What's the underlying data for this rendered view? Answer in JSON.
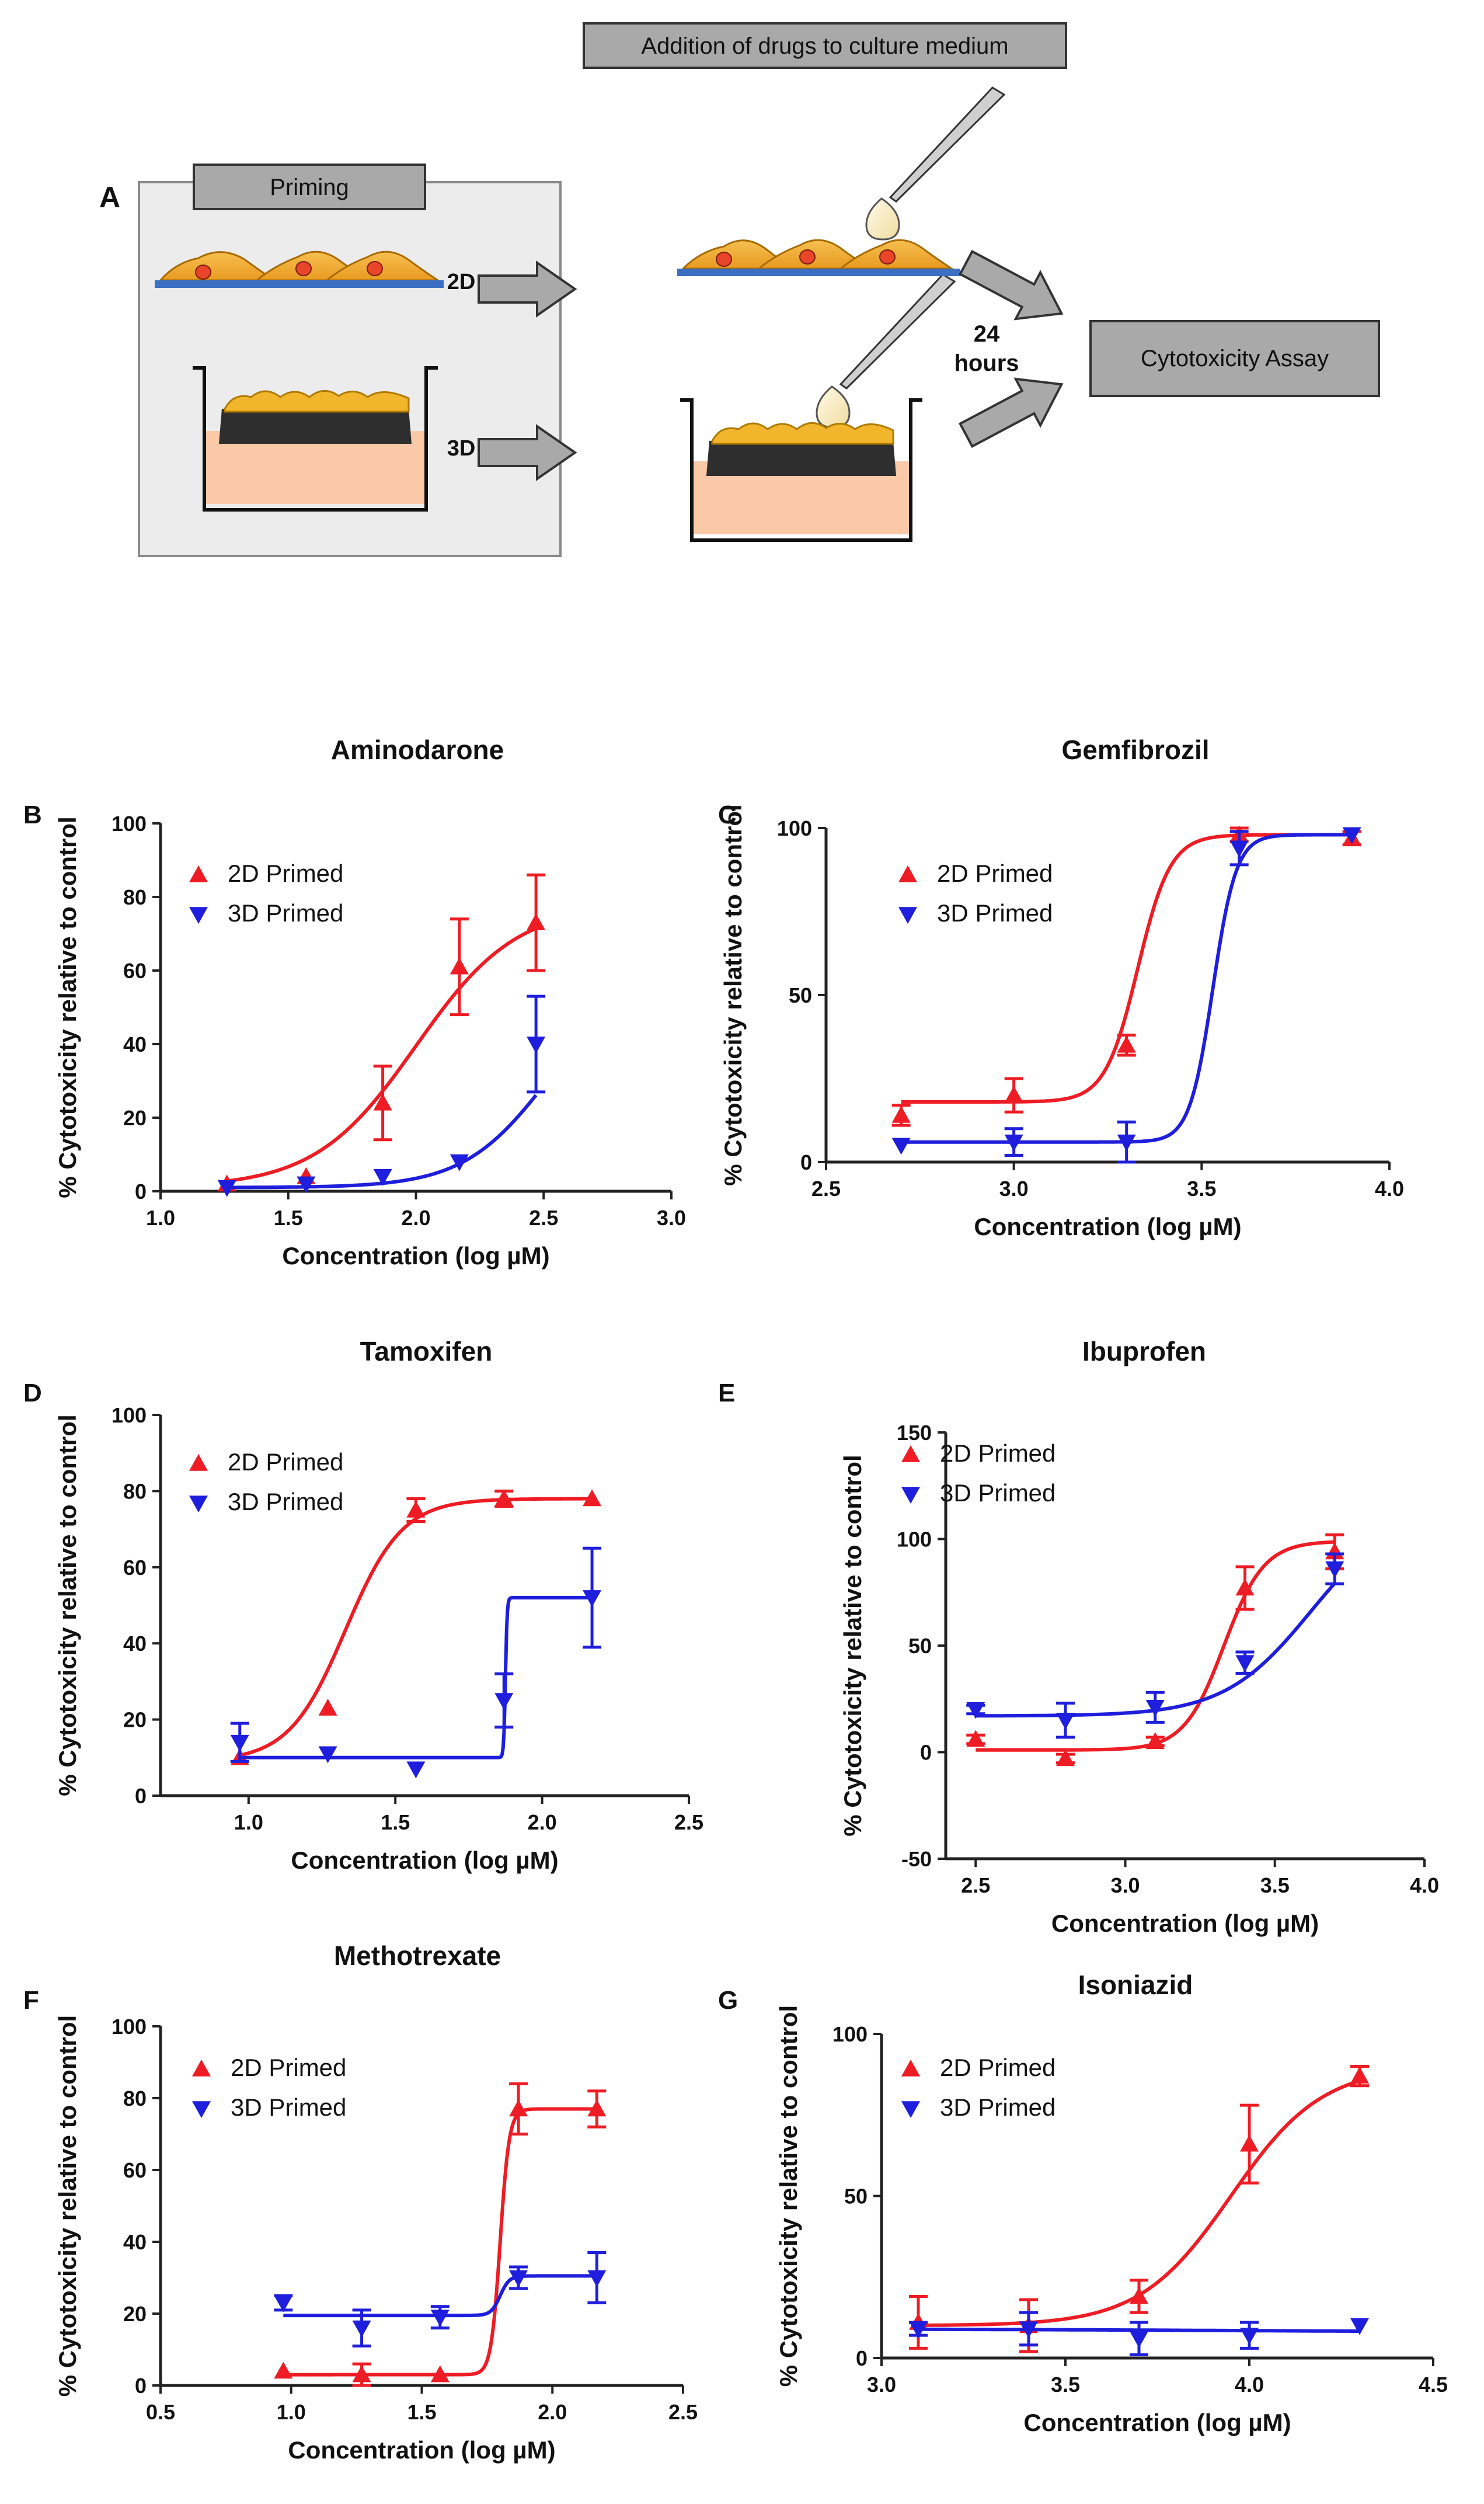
{
  "schematic": {
    "panel_label": "A",
    "priming_label": "Priming",
    "label_2d": "2D",
    "label_3d": "3D",
    "addition_label": "Addition of drugs to culture medium",
    "hours_value": "24",
    "hours_unit": "hours",
    "assay_label": "Cytotoxicity Assay"
  },
  "colors": {
    "red": "#ee1c24",
    "blue": "#1e1edc",
    "axis": "#222222",
    "box": "#a9a9a9"
  },
  "chart_data": [
    {
      "id": "B",
      "type": "scatter",
      "title": "Aminodarone",
      "xlabel": "Concentration (log µM)",
      "ylabel": "% Cytotoxicity relative to control",
      "xlim": [
        1.0,
        3.0
      ],
      "ylim": [
        0,
        100
      ],
      "xticks": [
        "1.0",
        "1.5",
        "2.0",
        "2.5",
        "3.0"
      ],
      "yticks": [
        "0",
        "20",
        "40",
        "60",
        "80",
        "100"
      ],
      "series": [
        {
          "name": "2D Primed",
          "color": "#ee1c24",
          "marker": "up",
          "points": [
            [
              1.26,
              2,
              1
            ],
            [
              1.57,
              4,
              1
            ],
            [
              1.87,
              24,
              10
            ],
            [
              2.17,
              61,
              13
            ],
            [
              2.47,
              73,
              13
            ]
          ],
          "fit": {
            "bottom": 1,
            "top": 78,
            "logec50": 2.0,
            "hill": 2.2
          }
        },
        {
          "name": "3D Primed",
          "color": "#1e1edc",
          "marker": "down",
          "points": [
            [
              1.26,
              1,
              1
            ],
            [
              1.57,
              2,
              1
            ],
            [
              1.87,
              4,
              1
            ],
            [
              2.17,
              8,
              1
            ],
            [
              2.47,
              40,
              13
            ]
          ],
          "fit": {
            "bottom": 1,
            "top": 60,
            "logec50": 2.52,
            "hill": 2.6
          }
        }
      ]
    },
    {
      "id": "C",
      "type": "scatter",
      "title": "Gemfibrozil",
      "xlabel": "Concentration (log µM)",
      "ylabel": "% Cytotoxicity relative to control",
      "xlim": [
        2.5,
        4.0
      ],
      "ylim": [
        0,
        100
      ],
      "xticks": [
        "2.5",
        "3.0",
        "3.5",
        "4.0"
      ],
      "yticks": [
        "0",
        "50",
        "100"
      ],
      "series": [
        {
          "name": "2D Primed",
          "color": "#ee1c24",
          "marker": "up",
          "points": [
            [
              2.7,
              14,
              3
            ],
            [
              3.0,
              20,
              5
            ],
            [
              3.3,
              35,
              3
            ],
            [
              3.6,
              98,
              2
            ],
            [
              3.9,
              97,
              2
            ]
          ],
          "fit": {
            "bottom": 18,
            "top": 98,
            "logec50": 3.33,
            "hill": 10
          }
        },
        {
          "name": "3D Primed",
          "color": "#1e1edc",
          "marker": "down",
          "points": [
            [
              2.7,
              5,
              1
            ],
            [
              3.0,
              6,
              4
            ],
            [
              3.3,
              6,
              6
            ],
            [
              3.6,
              94,
              5
            ],
            [
              3.9,
              98,
              1
            ]
          ],
          "fit": {
            "bottom": 6,
            "top": 98,
            "logec50": 3.53,
            "hill": 14
          }
        }
      ]
    },
    {
      "id": "D",
      "type": "scatter",
      "title": "Tamoxifen",
      "xlabel": "Concentration (log µM)",
      "ylabel": "% Cytotoxicity relative to control",
      "xlim": [
        0.7,
        2.5
      ],
      "ylim": [
        0,
        100
      ],
      "xticks": [
        "1.0",
        "1.5",
        "2.0",
        "2.5"
      ],
      "yticks": [
        "0",
        "20",
        "40",
        "60",
        "80",
        "100"
      ],
      "series": [
        {
          "name": "2D Primed",
          "color": "#ee1c24",
          "marker": "up",
          "points": [
            [
              0.97,
              10,
              1
            ],
            [
              1.27,
              23,
              1
            ],
            [
              1.57,
              75,
              3
            ],
            [
              1.87,
              78,
              2
            ],
            [
              2.17,
              78,
              1
            ]
          ],
          "fit": {
            "bottom": 9,
            "top": 78,
            "logec50": 1.33,
            "hill": 4.5
          }
        },
        {
          "name": "3D Primed",
          "color": "#1e1edc",
          "marker": "down",
          "points": [
            [
              0.97,
              14,
              5
            ],
            [
              1.27,
              11,
              1
            ],
            [
              1.57,
              7,
              1
            ],
            [
              1.87,
              25,
              7
            ],
            [
              2.17,
              52,
              13
            ]
          ],
          "fit": {
            "bottom": 10,
            "top": 52,
            "logec50": 1.875,
            "hill": 150
          }
        }
      ]
    },
    {
      "id": "E",
      "type": "scatter",
      "title": "Ibuprofen",
      "xlabel": "Concentration (log µM)",
      "ylabel": "% Cytotoxicity relative to control",
      "xlim": [
        2.4,
        4.0
      ],
      "ylim": [
        -50,
        150
      ],
      "xticks": [
        "2.5",
        "3.0",
        "3.5",
        "4.0"
      ],
      "yticks": [
        "-50",
        "0",
        "50",
        "100",
        "150"
      ],
      "series": [
        {
          "name": "2D Primed",
          "color": "#ee1c24",
          "marker": "up",
          "points": [
            [
              2.5,
              6,
              2
            ],
            [
              2.8,
              -3,
              2
            ],
            [
              3.1,
              5,
              2
            ],
            [
              3.4,
              77,
              10
            ],
            [
              3.7,
              94,
              8
            ]
          ],
          "fit": {
            "bottom": 1,
            "top": 99,
            "logec50": 3.33,
            "hill": 6.5
          }
        },
        {
          "name": "3D Primed",
          "color": "#1e1edc",
          "marker": "down",
          "points": [
            [
              2.5,
              20,
              2
            ],
            [
              2.8,
              15,
              8
            ],
            [
              3.1,
              21,
              7
            ],
            [
              3.4,
              42,
              5
            ],
            [
              3.7,
              86,
              7
            ]
          ],
          "fit": {
            "bottom": 17,
            "top": 115,
            "logec50": 3.62,
            "hill": 3.0
          }
        }
      ]
    },
    {
      "id": "F",
      "type": "scatter",
      "title": "Methotrexate",
      "xlabel": "Concentration (log µM)",
      "ylabel": "% Cytotoxicity relative to control",
      "xlim": [
        0.5,
        2.5
      ],
      "ylim": [
        0,
        100
      ],
      "xticks": [
        "0.5",
        "1.0",
        "1.5",
        "2.0",
        "2.5"
      ],
      "yticks": [
        "0",
        "20",
        "40",
        "60",
        "80",
        "100"
      ],
      "series": [
        {
          "name": "2D Primed",
          "color": "#ee1c24",
          "marker": "up",
          "points": [
            [
              0.97,
              4,
              1
            ],
            [
              1.27,
              3,
              3
            ],
            [
              1.57,
              3,
              1
            ],
            [
              1.87,
              77,
              7
            ],
            [
              2.17,
              77,
              5
            ]
          ],
          "fit": {
            "bottom": 3,
            "top": 77,
            "logec50": 1.8,
            "hill": 25
          }
        },
        {
          "name": "3D Primed",
          "color": "#1e1edc",
          "marker": "down",
          "points": [
            [
              0.97,
              23,
              2
            ],
            [
              1.27,
              16,
              5
            ],
            [
              1.57,
              19,
              3
            ],
            [
              1.87,
              30,
              3
            ],
            [
              2.17,
              30,
              7
            ]
          ],
          "fit": {
            "bottom": 19.5,
            "top": 30.5,
            "logec50": 1.8,
            "hill": 25
          }
        }
      ]
    },
    {
      "id": "G",
      "type": "scatter",
      "title": "Isoniazid",
      "xlabel": "Concentration (log µM)",
      "ylabel": "% Cytotoxicity relative to control",
      "xlim": [
        3.0,
        4.5
      ],
      "ylim": [
        0,
        100
      ],
      "xticks": [
        "3.0",
        "3.5",
        "4.0",
        "4.5"
      ],
      "yticks": [
        "0",
        "50",
        "100"
      ],
      "series": [
        {
          "name": "2D Primed",
          "color": "#ee1c24",
          "marker": "up",
          "points": [
            [
              3.1,
              11,
              8
            ],
            [
              3.4,
              10,
              8
            ],
            [
              3.7,
              19,
              5
            ],
            [
              4.0,
              66,
              12
            ],
            [
              4.3,
              87,
              3
            ]
          ],
          "fit": {
            "bottom": 10,
            "top": 90,
            "logec50": 3.95,
            "hill": 3.5
          }
        },
        {
          "name": "3D Primed",
          "color": "#1e1edc",
          "marker": "down",
          "points": [
            [
              3.1,
              9,
              2
            ],
            [
              3.4,
              9,
              5
            ],
            [
              3.7,
              6,
              5
            ],
            [
              4.0,
              7,
              4
            ],
            [
              4.3,
              10,
              1
            ]
          ],
          "fit": {
            "bottom": 9,
            "top": 8,
            "logec50": 3.9,
            "hill": 1
          }
        }
      ]
    }
  ]
}
